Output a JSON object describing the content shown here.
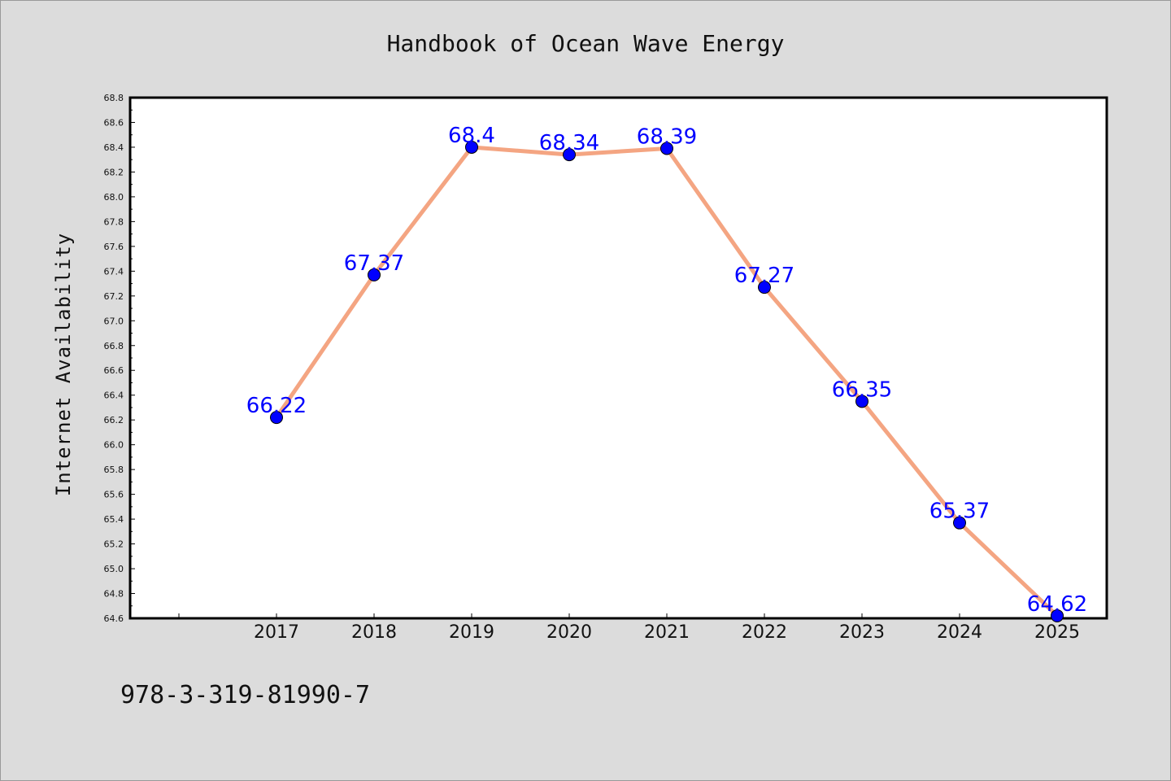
{
  "isbn": "978-3-319-81990-7",
  "chart_data": {
    "type": "line",
    "title": "Handbook of Ocean Wave Energy",
    "xlabel": "",
    "ylabel": "Internet Availability",
    "categories": [
      "2017",
      "2018",
      "2019",
      "2020",
      "2021",
      "2022",
      "2023",
      "2024",
      "2025"
    ],
    "values": [
      66.22,
      67.37,
      68.4,
      68.34,
      68.39,
      67.27,
      66.35,
      65.37,
      64.62
    ],
    "data_labels": [
      "66.22",
      "67.37",
      "68.4",
      "68.34",
      "68.39",
      "67.27",
      "66.35",
      "65.37",
      "64.62"
    ],
    "ylim": [
      64.6,
      68.8
    ],
    "y_ticks": [
      "64.6",
      "64.8",
      "65.0",
      "65.2",
      "65.4",
      "65.6",
      "65.8",
      "66.0",
      "66.2",
      "66.4",
      "66.6",
      "66.8",
      "67.0",
      "67.2",
      "67.4",
      "67.6",
      "67.8",
      "68.0",
      "68.2",
      "68.4",
      "68.6",
      "68.8"
    ],
    "grid": false,
    "legend": "none",
    "colors": {
      "background": "#dcdcdc",
      "plot_background": "#ffffff",
      "line": "#f4a582",
      "marker": "#0000ff",
      "data_label": "#0000ff",
      "text": "#111111"
    }
  }
}
